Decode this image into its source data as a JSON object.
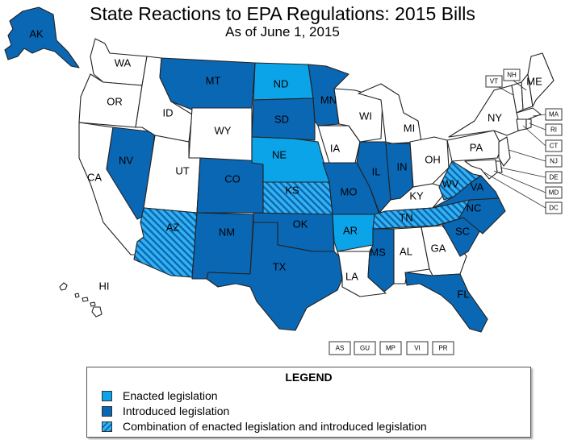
{
  "title": "State Reactions to EPA Regulations: 2015 Bills",
  "subtitle": "As of June 1, 2015",
  "colors": {
    "enacted": "#0ba4e8",
    "introduced": "#0a67b4",
    "none": "#ffffff",
    "stripe_a": "#0a67b4",
    "stripe_b": "#34b2ef"
  },
  "legend": {
    "title": "LEGEND",
    "items": [
      {
        "label": "Enacted legislation",
        "category": "enacted"
      },
      {
        "label": "Introduced legislation",
        "category": "introduced"
      },
      {
        "label": "Combination of enacted legislation and introduced legislation",
        "category": "combination"
      }
    ]
  },
  "states": {
    "AK": "introduced",
    "WA": "none",
    "OR": "none",
    "CA": "none",
    "NV": "introduced",
    "ID": "none",
    "MT": "introduced",
    "WY": "none",
    "UT": "none",
    "CO": "introduced",
    "AZ": "combination",
    "NM": "introduced",
    "ND": "enacted",
    "SD": "introduced",
    "NE": "enacted",
    "KS": "combination",
    "OK": "introduced",
    "TX": "introduced",
    "MN": "introduced",
    "IA": "none",
    "MO": "introduced",
    "AR": "enacted",
    "LA": "none",
    "WI": "none",
    "IL": "introduced",
    "MI": "none",
    "IN": "introduced",
    "OH": "none",
    "KY": "none",
    "TN": "combination",
    "MS": "introduced",
    "AL": "none",
    "GA": "none",
    "FL": "introduced",
    "SC": "introduced",
    "NC": "introduced",
    "VA": "introduced",
    "WV": "combination",
    "PA": "none",
    "NY": "none",
    "ME": "none",
    "VT": "none",
    "NH": "none",
    "MA": "none",
    "RI": "none",
    "CT": "none",
    "NJ": "none",
    "DE": "none",
    "MD": "none",
    "DC": "none",
    "HI": "none"
  },
  "territories": [
    "AS",
    "GU",
    "MP",
    "VI",
    "PR"
  ]
}
